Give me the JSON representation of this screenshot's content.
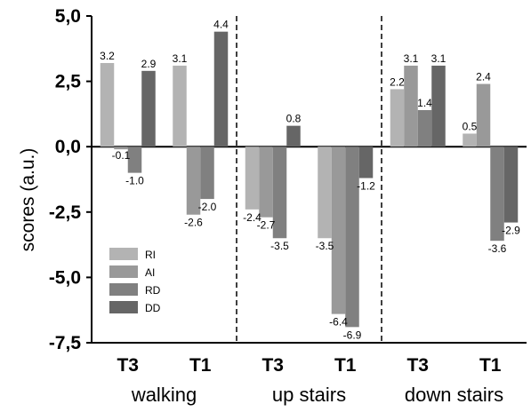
{
  "chart_data": {
    "type": "bar",
    "ylabel": "scores (a.u.)",
    "ylim": [
      -7.5,
      5.0
    ],
    "yticks": [
      "5,0",
      "2,5",
      "0,0",
      "-2,5",
      "-5,0",
      "-7,5"
    ],
    "ytick_values": [
      5.0,
      2.5,
      0.0,
      -2.5,
      -5.0,
      -7.5
    ],
    "groups": [
      {
        "name": "walking",
        "categories": [
          "T3",
          "T1"
        ]
      },
      {
        "name": "up stairs",
        "categories": [
          "T3",
          "T1"
        ]
      },
      {
        "name": "down stairs",
        "categories": [
          "T3",
          "T1"
        ]
      }
    ],
    "series": [
      {
        "name": "RI",
        "color": "#b3b3b3",
        "values": [
          3.2,
          3.1,
          -2.4,
          -3.5,
          2.2,
          0.5
        ]
      },
      {
        "name": "AI",
        "color": "#999999",
        "values": [
          -0.1,
          -2.6,
          -2.7,
          -6.4,
          3.1,
          2.4
        ]
      },
      {
        "name": "RD",
        "color": "#808080",
        "values": [
          -1.0,
          -2.0,
          -3.5,
          -6.9,
          1.4,
          -3.6
        ]
      },
      {
        "name": "DD",
        "color": "#666666",
        "values": [
          2.9,
          4.4,
          0.8,
          -1.2,
          3.1,
          -2.9
        ]
      }
    ],
    "data_labels": [
      [
        "3.2",
        "3.1",
        "-2.4",
        "-3.5",
        "2.2",
        "0.5"
      ],
      [
        "-0.1",
        "-2.6",
        "-2.7",
        "-6.4",
        "3.1",
        "2.4"
      ],
      [
        "-1.0",
        "-2.0",
        "-3.5",
        "-6.9",
        "1.4",
        "-3.6"
      ],
      [
        "2.9",
        "4.4",
        "0.8",
        "-1.2",
        "3.1",
        "-2.9"
      ]
    ],
    "legend": {
      "position": "lower-left",
      "entries": [
        "RI",
        "AI",
        "RD",
        "DD"
      ]
    },
    "grid": false,
    "separators": "dashed vertical lines between groups"
  }
}
